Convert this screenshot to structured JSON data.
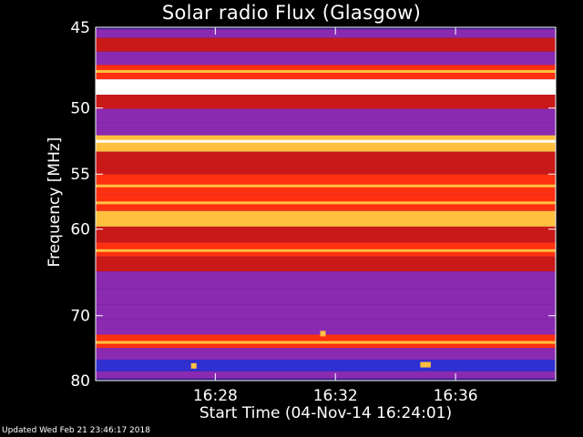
{
  "chart_data": {
    "type": "heatmap",
    "title": "Solar radio Flux (Glasgow)",
    "ylabel": "Frequency [MHz]",
    "xlabel": "Start Time (04-Nov-14 16:24:01)",
    "start_time": "16:24:01",
    "end_time": "16:39:20",
    "ylim": [
      80,
      45
    ],
    "x_ticks": [
      "16:28",
      "16:32",
      "16:36"
    ],
    "y_ticks": [
      45,
      50,
      55,
      60,
      70,
      80
    ],
    "colormap": [
      "#1a0a78",
      "#3030d0",
      "#8a2ab0",
      "#c81818",
      "#ff3010",
      "#ffc040",
      "#ffffff"
    ],
    "bands": [
      {
        "mhz": 45.2,
        "level": 0.35
      },
      {
        "mhz": 46.0,
        "level": 0.55
      },
      {
        "mhz": 46.8,
        "level": 0.25
      },
      {
        "mhz": 47.6,
        "level": 0.6
      },
      {
        "mhz": 48.6,
        "level": 1.0
      },
      {
        "mhz": 49.6,
        "level": 0.45
      },
      {
        "mhz": 50.5,
        "level": 0.3
      },
      {
        "mhz": 51.5,
        "level": 0.4
      },
      {
        "mhz": 52.4,
        "level": 0.85
      },
      {
        "mhz": 54.0,
        "level": 0.55
      },
      {
        "mhz": 56.0,
        "level": 0.62
      },
      {
        "mhz": 57.5,
        "level": 0.6
      },
      {
        "mhz": 59.0,
        "level": 0.75
      },
      {
        "mhz": 60.5,
        "level": 0.5
      },
      {
        "mhz": 62.2,
        "level": 0.66
      },
      {
        "mhz": 63.5,
        "level": 0.45
      },
      {
        "mhz": 65.5,
        "level": 0.4
      },
      {
        "mhz": 67.5,
        "level": 0.38
      },
      {
        "mhz": 69.5,
        "level": 0.35
      },
      {
        "mhz": 71.5,
        "level": 0.36
      },
      {
        "mhz": 73.8,
        "level": 0.62
      },
      {
        "mhz": 75.5,
        "level": 0.35
      },
      {
        "mhz": 77.5,
        "level": 0.22
      },
      {
        "mhz": 79.3,
        "level": 0.28
      }
    ],
    "bursts": [
      {
        "time": "16:27:17",
        "mhz": 77.5
      },
      {
        "time": "16:34:55",
        "mhz": 77.3
      },
      {
        "time": "16:35:05",
        "mhz": 77.3
      },
      {
        "time": "16:31:35",
        "mhz": 72.5
      }
    ]
  },
  "footer": "Updated Wed Feb 21 23:46:17 2018"
}
